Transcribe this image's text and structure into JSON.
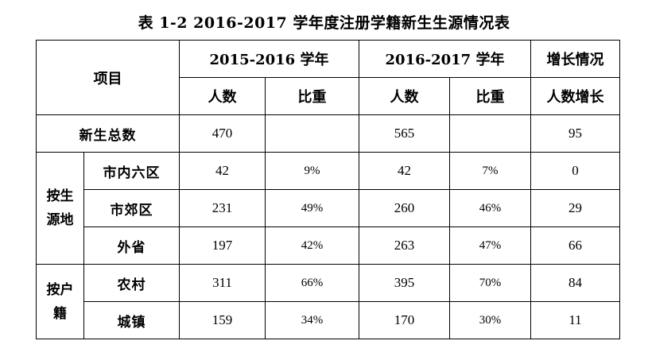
{
  "title": "表 1-2 2016-2017 学年度注册学籍新生生源情况表",
  "header": {
    "item": "项目",
    "year1": "2015-2016 学年",
    "year2": "2016-2017 学年",
    "growth": "增长情况",
    "count": "人数",
    "ratio": "比重",
    "count_growth": "人数增长"
  },
  "total": {
    "label": "新生总数",
    "y1_count": "470",
    "y1_ratio": "",
    "y2_count": "565",
    "y2_ratio": "",
    "growth": "95"
  },
  "groups": [
    {
      "label_line1": "按生",
      "label_line2": "源地",
      "rows": [
        {
          "label": "市内六区",
          "y1_count": "42",
          "y1_ratio": "9%",
          "y2_count": "42",
          "y2_ratio": "7%",
          "growth": "0"
        },
        {
          "label": "市郊区",
          "y1_count": "231",
          "y1_ratio": "49%",
          "y2_count": "260",
          "y2_ratio": "46%",
          "growth": "29"
        },
        {
          "label": "外省",
          "y1_count": "197",
          "y1_ratio": "42%",
          "y2_count": "263",
          "y2_ratio": "47%",
          "growth": "66"
        }
      ]
    },
    {
      "label_line1": "按户",
      "label_line2": "籍",
      "rows": [
        {
          "label": "农村",
          "y1_count": "311",
          "y1_ratio": "66%",
          "y2_count": "395",
          "y2_ratio": "70%",
          "growth": "84"
        },
        {
          "label": "城镇",
          "y1_count": "159",
          "y1_ratio": "34%",
          "y2_count": "170",
          "y2_ratio": "30%",
          "growth": "11"
        }
      ]
    }
  ]
}
